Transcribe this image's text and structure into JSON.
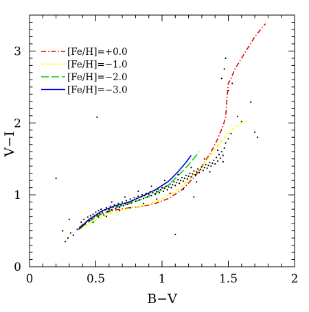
{
  "chart_data": {
    "type": "scatter",
    "xlabel": "B−V",
    "ylabel": "V−I",
    "xlim": [
      0,
      2
    ],
    "ylim": [
      0,
      3.5
    ],
    "xticks": [
      0,
      0.5,
      1,
      1.5,
      2
    ],
    "xtick_labels": [
      "0",
      "0.5",
      "1",
      "1.5",
      "2"
    ],
    "yticks": [
      0,
      1,
      2,
      3
    ],
    "ytick_labels": [
      "0",
      "1",
      "2",
      "3"
    ],
    "grid": false,
    "legend_position": "top-left",
    "series": [
      {
        "name": "[Fe/H]=+0.0",
        "color": "#dd0000",
        "dash": "dash-dot",
        "x": [
          0.38,
          0.45,
          0.55,
          0.65,
          0.75,
          0.85,
          0.95,
          1.05,
          1.15,
          1.25,
          1.32,
          1.38,
          1.42,
          1.46,
          1.48,
          1.485,
          1.49,
          1.5,
          1.52,
          1.55,
          1.6,
          1.65,
          1.7,
          1.78
        ],
        "y": [
          0.55,
          0.66,
          0.74,
          0.79,
          0.82,
          0.84,
          0.88,
          0.95,
          1.07,
          1.26,
          1.45,
          1.63,
          1.78,
          1.96,
          2.08,
          2.2,
          2.35,
          2.55,
          2.62,
          2.75,
          2.9,
          3.05,
          3.2,
          3.38
        ]
      },
      {
        "name": "[Fe/H]=−1.0",
        "color": "#ffff00",
        "dash": "dashed",
        "x": [
          0.38,
          0.5,
          0.6,
          0.7,
          0.8,
          0.9,
          1.0,
          1.1,
          1.2,
          1.3,
          1.38,
          1.45,
          1.52,
          1.58,
          1.63
        ],
        "y": [
          0.52,
          0.65,
          0.73,
          0.79,
          0.83,
          0.87,
          0.94,
          1.05,
          1.2,
          1.4,
          1.58,
          1.75,
          1.9,
          1.98,
          2.03
        ]
      },
      {
        "name": "[Fe/H]=−2.0",
        "color": "#00cc00",
        "dash": "long-dash",
        "x": [
          0.38,
          0.45,
          0.55,
          0.65,
          0.75,
          0.85,
          0.95,
          1.05,
          1.15,
          1.22,
          1.28
        ],
        "y": [
          0.53,
          0.63,
          0.74,
          0.82,
          0.88,
          0.94,
          1.02,
          1.14,
          1.32,
          1.46,
          1.6
        ]
      },
      {
        "name": "[Fe/H]=−3.0",
        "color": "#0000dd",
        "dash": "solid",
        "x": [
          0.37,
          0.45,
          0.55,
          0.65,
          0.75,
          0.85,
          0.95,
          1.05,
          1.12,
          1.18,
          1.22
        ],
        "y": [
          0.52,
          0.66,
          0.78,
          0.85,
          0.9,
          0.98,
          1.07,
          1.19,
          1.32,
          1.45,
          1.55
        ]
      }
    ],
    "scatter_points": {
      "name": "",
      "color": "#000000",
      "points": [
        [
          0.2,
          1.23
        ],
        [
          0.25,
          0.5
        ],
        [
          0.27,
          0.35
        ],
        [
          0.29,
          0.4
        ],
        [
          0.31,
          0.47
        ],
        [
          0.3,
          0.66
        ],
        [
          0.33,
          0.44
        ],
        [
          0.36,
          0.52
        ],
        [
          0.38,
          0.55
        ],
        [
          0.39,
          0.62
        ],
        [
          0.4,
          0.58
        ],
        [
          0.41,
          0.66
        ],
        [
          0.42,
          0.6
        ],
        [
          0.43,
          0.63
        ],
        [
          0.44,
          0.69
        ],
        [
          0.45,
          0.64
        ],
        [
          0.46,
          0.71
        ],
        [
          0.47,
          0.67
        ],
        [
          0.48,
          0.73
        ],
        [
          0.49,
          0.7
        ],
        [
          0.5,
          0.76
        ],
        [
          0.51,
          0.72
        ],
        [
          0.52,
          0.69
        ],
        [
          0.52,
          0.78
        ],
        [
          0.53,
          0.74
        ],
        [
          0.54,
          0.8
        ],
        [
          0.55,
          0.76
        ],
        [
          0.56,
          0.72
        ],
        [
          0.57,
          0.79
        ],
        [
          0.58,
          0.82
        ],
        [
          0.59,
          0.77
        ],
        [
          0.6,
          0.8
        ],
        [
          0.61,
          0.84
        ],
        [
          0.62,
          0.79
        ],
        [
          0.63,
          0.83
        ],
        [
          0.64,
          0.86
        ],
        [
          0.65,
          0.81
        ],
        [
          0.66,
          0.84
        ],
        [
          0.67,
          0.88
        ],
        [
          0.68,
          0.83
        ],
        [
          0.69,
          0.86
        ],
        [
          0.7,
          0.9
        ],
        [
          0.71,
          0.85
        ],
        [
          0.72,
          0.88
        ],
        [
          0.73,
          0.92
        ],
        [
          0.74,
          0.87
        ],
        [
          0.75,
          0.9
        ],
        [
          0.76,
          0.94
        ],
        [
          0.77,
          0.89
        ],
        [
          0.78,
          0.92
        ],
        [
          0.79,
          0.96
        ],
        [
          0.8,
          0.91
        ],
        [
          0.81,
          0.95
        ],
        [
          0.82,
          0.98
        ],
        [
          0.83,
          0.93
        ],
        [
          0.84,
          0.97
        ],
        [
          0.85,
          1.0
        ],
        [
          0.86,
          0.95
        ],
        [
          0.87,
          0.99
        ],
        [
          0.88,
          1.02
        ],
        [
          0.89,
          0.97
        ],
        [
          0.9,
          1.01
        ],
        [
          0.91,
          1.04
        ],
        [
          0.92,
          0.99
        ],
        [
          0.93,
          1.03
        ],
        [
          0.94,
          1.06
        ],
        [
          0.95,
          1.01
        ],
        [
          0.96,
          1.05
        ],
        [
          0.97,
          1.08
        ],
        [
          0.98,
          1.03
        ],
        [
          0.99,
          1.07
        ],
        [
          1.0,
          1.1
        ],
        [
          1.01,
          1.05
        ],
        [
          1.02,
          1.09
        ],
        [
          1.03,
          1.12
        ],
        [
          1.04,
          1.07
        ],
        [
          1.05,
          1.11
        ],
        [
          1.06,
          1.15
        ],
        [
          1.07,
          1.1
        ],
        [
          1.08,
          1.14
        ],
        [
          1.09,
          1.18
        ],
        [
          1.1,
          1.13
        ],
        [
          1.11,
          1.17
        ],
        [
          1.12,
          1.21
        ],
        [
          1.13,
          1.16
        ],
        [
          1.14,
          1.2
        ],
        [
          1.15,
          1.24
        ],
        [
          1.16,
          1.19
        ],
        [
          1.17,
          1.23
        ],
        [
          1.18,
          1.27
        ],
        [
          1.19,
          1.22
        ],
        [
          1.2,
          1.26
        ],
        [
          1.21,
          1.3
        ],
        [
          1.22,
          1.25
        ],
        [
          1.23,
          1.29
        ],
        [
          1.24,
          1.33
        ],
        [
          1.25,
          1.28
        ],
        [
          1.26,
          1.32
        ],
        [
          1.27,
          1.36
        ],
        [
          1.28,
          1.31
        ],
        [
          1.29,
          1.35
        ],
        [
          1.3,
          1.39
        ],
        [
          1.31,
          1.34
        ],
        [
          1.32,
          1.38
        ],
        [
          1.33,
          1.42
        ],
        [
          1.34,
          1.37
        ],
        [
          1.35,
          1.41
        ],
        [
          1.36,
          1.45
        ],
        [
          1.37,
          1.4
        ],
        [
          1.38,
          1.44
        ],
        [
          1.39,
          1.48
        ],
        [
          1.4,
          1.43
        ],
        [
          1.41,
          1.52
        ],
        [
          1.42,
          1.47
        ],
        [
          1.43,
          1.56
        ],
        [
          1.44,
          1.51
        ],
        [
          1.45,
          1.6
        ],
        [
          1.46,
          1.55
        ],
        [
          1.47,
          1.65
        ],
        [
          1.48,
          1.72
        ],
        [
          1.5,
          1.78
        ],
        [
          1.52,
          1.85
        ],
        [
          1.45,
          2.62
        ],
        [
          1.47,
          2.75
        ],
        [
          1.48,
          2.9
        ],
        [
          1.5,
          2.45
        ],
        [
          1.53,
          2.55
        ],
        [
          1.57,
          2.09
        ],
        [
          1.6,
          2.02
        ],
        [
          1.67,
          2.29
        ],
        [
          1.7,
          1.87
        ],
        [
          1.72,
          1.8
        ],
        [
          1.24,
          0.97
        ],
        [
          1.1,
          0.45
        ],
        [
          0.51,
          2.08
        ],
        [
          0.48,
          0.62
        ],
        [
          0.58,
          0.7
        ],
        [
          0.68,
          0.78
        ],
        [
          0.76,
          0.82
        ],
        [
          0.86,
          0.88
        ],
        [
          0.96,
          0.94
        ],
        [
          1.06,
          1.02
        ],
        [
          1.16,
          1.08
        ],
        [
          1.26,
          1.18
        ],
        [
          1.36,
          1.32
        ],
        [
          1.46,
          1.46
        ],
        [
          0.62,
          0.9
        ],
        [
          0.72,
          0.97
        ],
        [
          0.82,
          1.05
        ],
        [
          0.92,
          1.12
        ],
        [
          1.02,
          1.2
        ],
        [
          1.12,
          1.28
        ],
        [
          1.22,
          1.38
        ],
        [
          1.32,
          1.5
        ],
        [
          1.42,
          1.62
        ]
      ]
    }
  }
}
